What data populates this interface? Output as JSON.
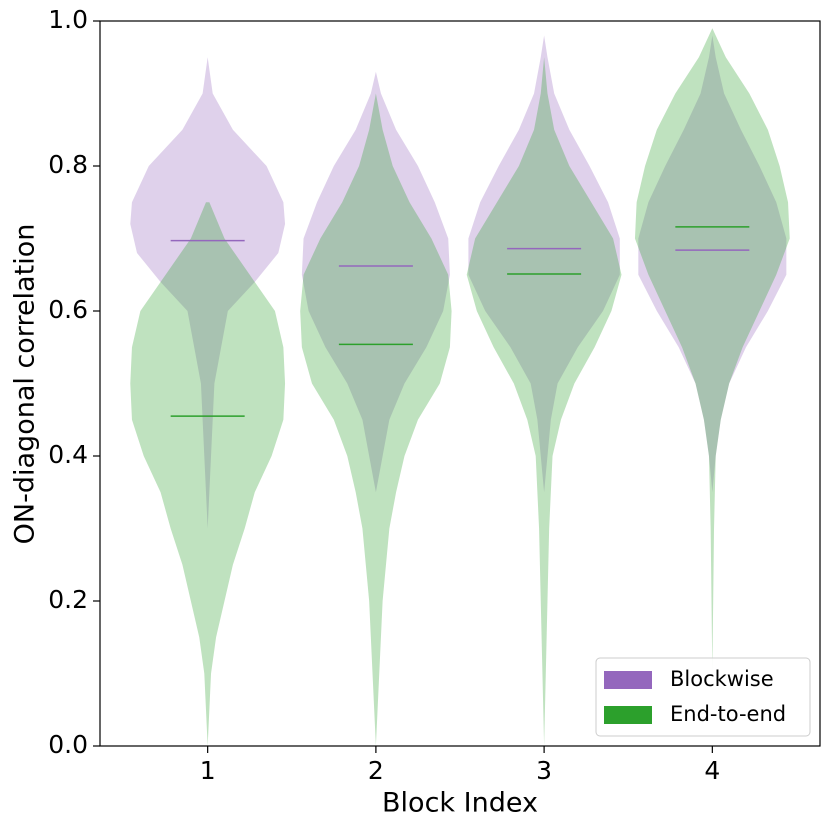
{
  "chart_data": {
    "type": "violin",
    "xlabel": "Block Index",
    "ylabel": "ON-diagonal correlation",
    "positions": [
      1,
      2,
      3,
      4
    ],
    "xlim": [
      0.36,
      4.64
    ],
    "ylim": [
      0,
      1
    ],
    "xticks": [
      1,
      2,
      3,
      4
    ],
    "yticks": [
      {
        "value": 0,
        "label": "0.0"
      },
      {
        "value": 0.2,
        "label": "0.2"
      },
      {
        "value": 0.4,
        "label": "0.4"
      },
      {
        "value": 0.6,
        "label": "0.6"
      },
      {
        "value": 0.8,
        "label": "0.8"
      },
      {
        "value": 1,
        "label": "1.0"
      }
    ],
    "legend": "lower right",
    "series": [
      {
        "name": "Blockwise",
        "color": "#9467bd",
        "means": [
          0.697,
          0.662,
          0.686,
          0.684
        ],
        "violins": [
          {
            "y": [
              0.95,
              0.9,
              0.85,
              0.8,
              0.75,
              0.72,
              0.68,
              0.64,
              0.6,
              0.5,
              0.4,
              0.3
            ],
            "w": [
              0,
              0.03,
              0.15,
              0.35,
              0.45,
              0.46,
              0.42,
              0.28,
              0.12,
              0.04,
              0.02,
              0
            ]
          },
          {
            "y": [
              0.93,
              0.9,
              0.85,
              0.8,
              0.75,
              0.7,
              0.65,
              0.6,
              0.55,
              0.5,
              0.45,
              0.4,
              0.35
            ],
            "w": [
              0,
              0.03,
              0.12,
              0.25,
              0.35,
              0.43,
              0.44,
              0.4,
              0.3,
              0.17,
              0.08,
              0.04,
              0
            ]
          },
          {
            "y": [
              0.98,
              0.95,
              0.9,
              0.85,
              0.8,
              0.75,
              0.7,
              0.65,
              0.6,
              0.55,
              0.5,
              0.45,
              0.4,
              0.35
            ],
            "w": [
              0,
              0.02,
              0.06,
              0.15,
              0.27,
              0.38,
              0.45,
              0.45,
              0.35,
              0.2,
              0.08,
              0.04,
              0.02,
              0
            ]
          },
          {
            "y": [
              0.98,
              0.95,
              0.9,
              0.85,
              0.8,
              0.75,
              0.7,
              0.65,
              0.6,
              0.55,
              0.5,
              0.45,
              0.4,
              0.35
            ],
            "w": [
              0,
              0.02,
              0.07,
              0.17,
              0.28,
              0.38,
              0.44,
              0.44,
              0.33,
              0.2,
              0.1,
              0.05,
              0.02,
              0
            ]
          }
        ]
      },
      {
        "name": "End-to-end",
        "color": "#2ca02c",
        "means": [
          0.455,
          0.554,
          0.651,
          0.716
        ],
        "violins": [
          {
            "y": [
              0.75,
              0.7,
              0.65,
              0.6,
              0.55,
              0.5,
              0.45,
              0.4,
              0.35,
              0.3,
              0.25,
              0.2,
              0.15,
              0.1,
              0
            ],
            "w": [
              0.01,
              0.1,
              0.25,
              0.4,
              0.45,
              0.46,
              0.45,
              0.38,
              0.28,
              0.22,
              0.15,
              0.1,
              0.05,
              0.02,
              0
            ]
          },
          {
            "y": [
              0.9,
              0.85,
              0.8,
              0.75,
              0.7,
              0.65,
              0.6,
              0.55,
              0.5,
              0.45,
              0.4,
              0.35,
              0.3,
              0.2,
              0.1,
              0
            ],
            "w": [
              0,
              0.04,
              0.1,
              0.2,
              0.33,
              0.43,
              0.45,
              0.44,
              0.38,
              0.25,
              0.17,
              0.12,
              0.08,
              0.04,
              0.02,
              0
            ]
          },
          {
            "y": [
              0.95,
              0.9,
              0.85,
              0.8,
              0.75,
              0.7,
              0.65,
              0.6,
              0.55,
              0.5,
              0.45,
              0.4,
              0.3,
              0.2,
              0.1,
              0
            ],
            "w": [
              0,
              0.02,
              0.06,
              0.15,
              0.28,
              0.41,
              0.46,
              0.4,
              0.3,
              0.18,
              0.1,
              0.05,
              0.03,
              0.02,
              0.01,
              0
            ]
          },
          {
            "y": [
              0.99,
              0.95,
              0.9,
              0.85,
              0.8,
              0.75,
              0.7,
              0.65,
              0.6,
              0.55,
              0.5,
              0.45,
              0.4,
              0.3,
              0.1
            ],
            "w": [
              0,
              0.08,
              0.22,
              0.33,
              0.4,
              0.45,
              0.46,
              0.38,
              0.28,
              0.18,
              0.1,
              0.05,
              0.02,
              0.01,
              0
            ]
          }
        ]
      }
    ]
  }
}
